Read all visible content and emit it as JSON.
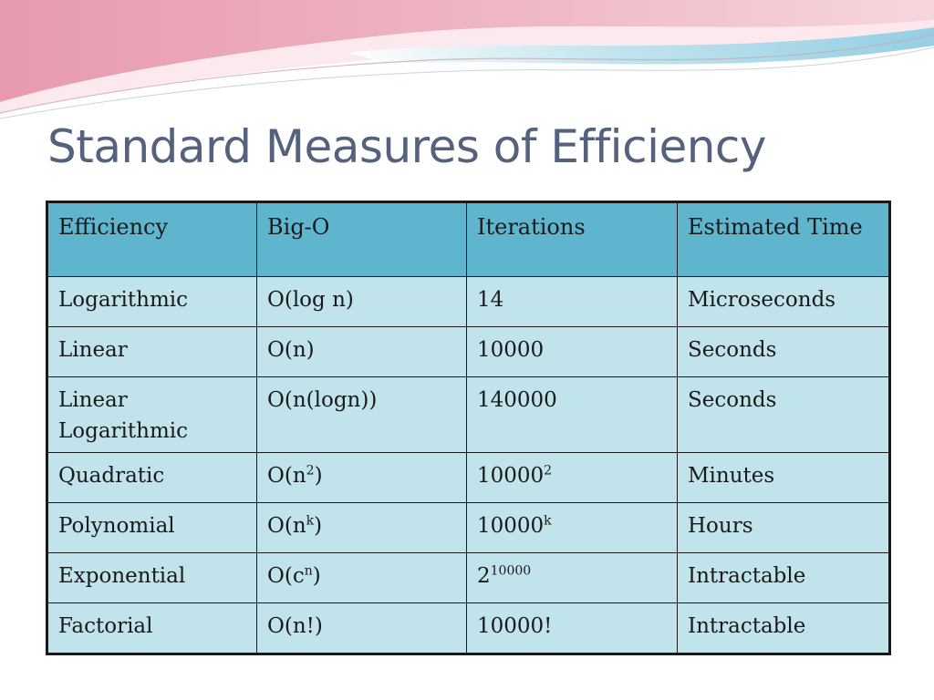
{
  "slide": {
    "title": "Standard Measures of Efficiency"
  },
  "table": {
    "headers": [
      "Efficiency",
      "Big-O",
      "Iterations",
      "Estimated Time"
    ],
    "rows": [
      {
        "efficiency": "Logarithmic",
        "bigo": "O(log n)",
        "bigo_sup": "",
        "bigo_end": "",
        "iter": "14",
        "iter_sup": "",
        "time": "Microseconds"
      },
      {
        "efficiency": "Linear",
        "bigo": "O(n)",
        "bigo_sup": "",
        "bigo_end": "",
        "iter": "10000",
        "iter_sup": "",
        "time": "Seconds"
      },
      {
        "efficiency": "Linear Logarithmic",
        "bigo": "O(n(logn))",
        "bigo_sup": "",
        "bigo_end": "",
        "iter": "140000",
        "iter_sup": "",
        "time": "Seconds"
      },
      {
        "efficiency": "Quadratic",
        "bigo": "O(n",
        "bigo_sup": "2",
        "bigo_end": ")",
        "iter": "10000",
        "iter_sup": "2",
        "time": "Minutes"
      },
      {
        "efficiency": "Polynomial",
        "bigo": "O(n",
        "bigo_sup": "k",
        "bigo_end": ")",
        "iter": "10000",
        "iter_sup": "k",
        "time": "Hours"
      },
      {
        "efficiency": "Exponential",
        "bigo": "O(c",
        "bigo_sup": "n",
        "bigo_end": ")",
        "iter": "2",
        "iter_sup": "10000",
        "time": "Intractable"
      },
      {
        "efficiency": "Factorial",
        "bigo": "O(n!)",
        "bigo_sup": "",
        "bigo_end": "",
        "iter": "10000!",
        "iter_sup": "",
        "time": "Intractable"
      }
    ]
  },
  "colors": {
    "header_bg": "#5fb4ce",
    "cell_bg": "#c0e3ec",
    "title": "#55627e",
    "wave_pink": "#e8a3b4",
    "wave_blue": "#a9d8e8"
  },
  "icons": {
    "decoration": "wave-decoration"
  }
}
